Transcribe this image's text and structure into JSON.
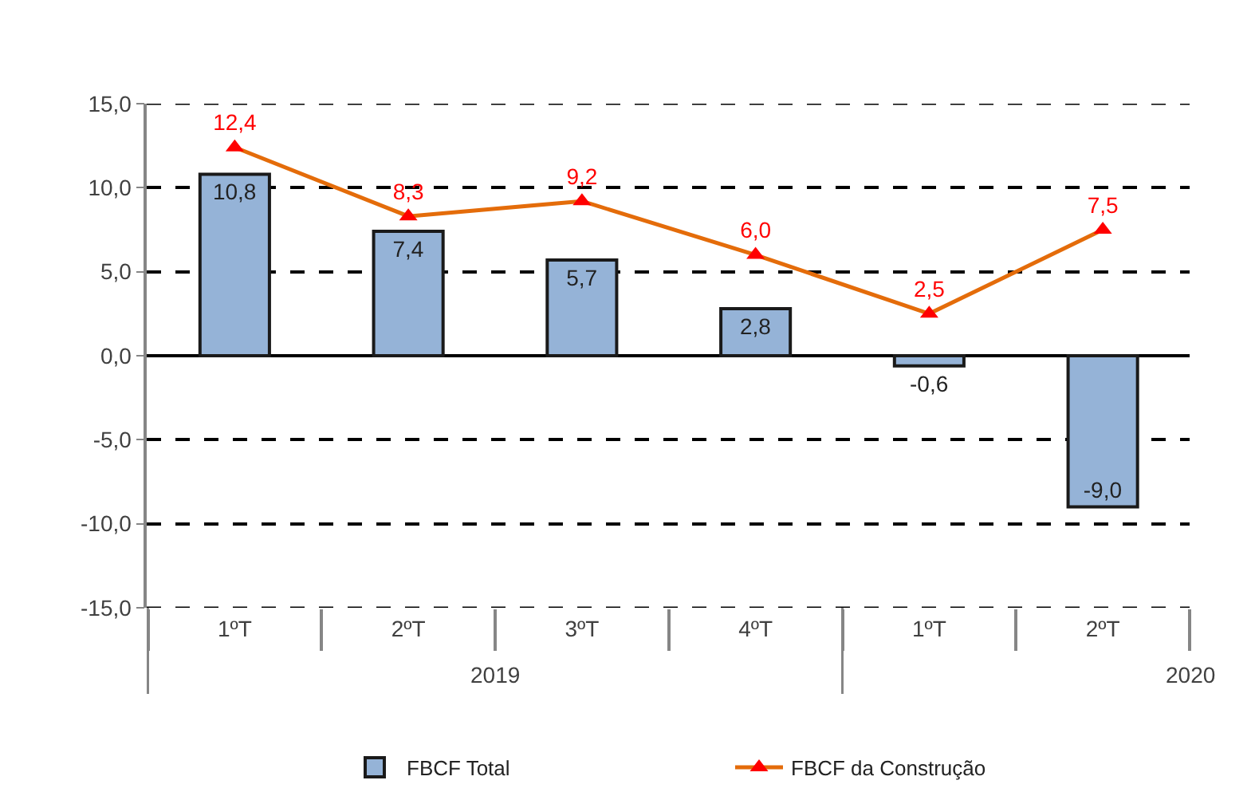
{
  "chart_data": {
    "type": "bar",
    "categories": [
      "1ºT",
      "2ºT",
      "3ºT",
      "4ºT",
      "1ºT",
      "2ºT"
    ],
    "series": [
      {
        "name": "FBCF Total",
        "color": "#95b3d7",
        "values": [
          10.8,
          7.4,
          5.7,
          2.8,
          -0.6,
          -9.0
        ],
        "value_labels": [
          "10,8",
          "7,4",
          "5,7",
          "2,8",
          "-0,6",
          "-9,0"
        ]
      },
      {
        "name": "FBCF da Construção",
        "type": "line",
        "color": "#e46c0a",
        "colors": [
          "#ff0000",
          "#ff0000",
          "#ff0000",
          "#ff0000",
          "#ff0000",
          "#ff0000"
        ],
        "values": [
          12.4,
          8.3,
          9.2,
          6.0,
          2.5,
          7.5
        ],
        "value_labels": [
          "12,4",
          "8,3",
          "9,2",
          "6,0",
          "2,5",
          "7,5"
        ]
      }
    ],
    "ylim": [
      -15,
      15
    ],
    "yticks": [
      {
        "value": -15,
        "label": "-15,0"
      },
      {
        "value": -10,
        "label": "-10,0"
      },
      {
        "value": -5,
        "label": "-5,0"
      },
      {
        "value": 0,
        "label": "0,0"
      },
      {
        "value": 5,
        "label": "5,0"
      },
      {
        "value": 10,
        "label": "10,0"
      },
      {
        "value": 15,
        "label": "15,0"
      }
    ],
    "annotations": [
      "2019",
      "2020"
    ],
    "grid": "y",
    "legend": "bottom",
    "marker": "triangle",
    "line_style": "solid"
  }
}
